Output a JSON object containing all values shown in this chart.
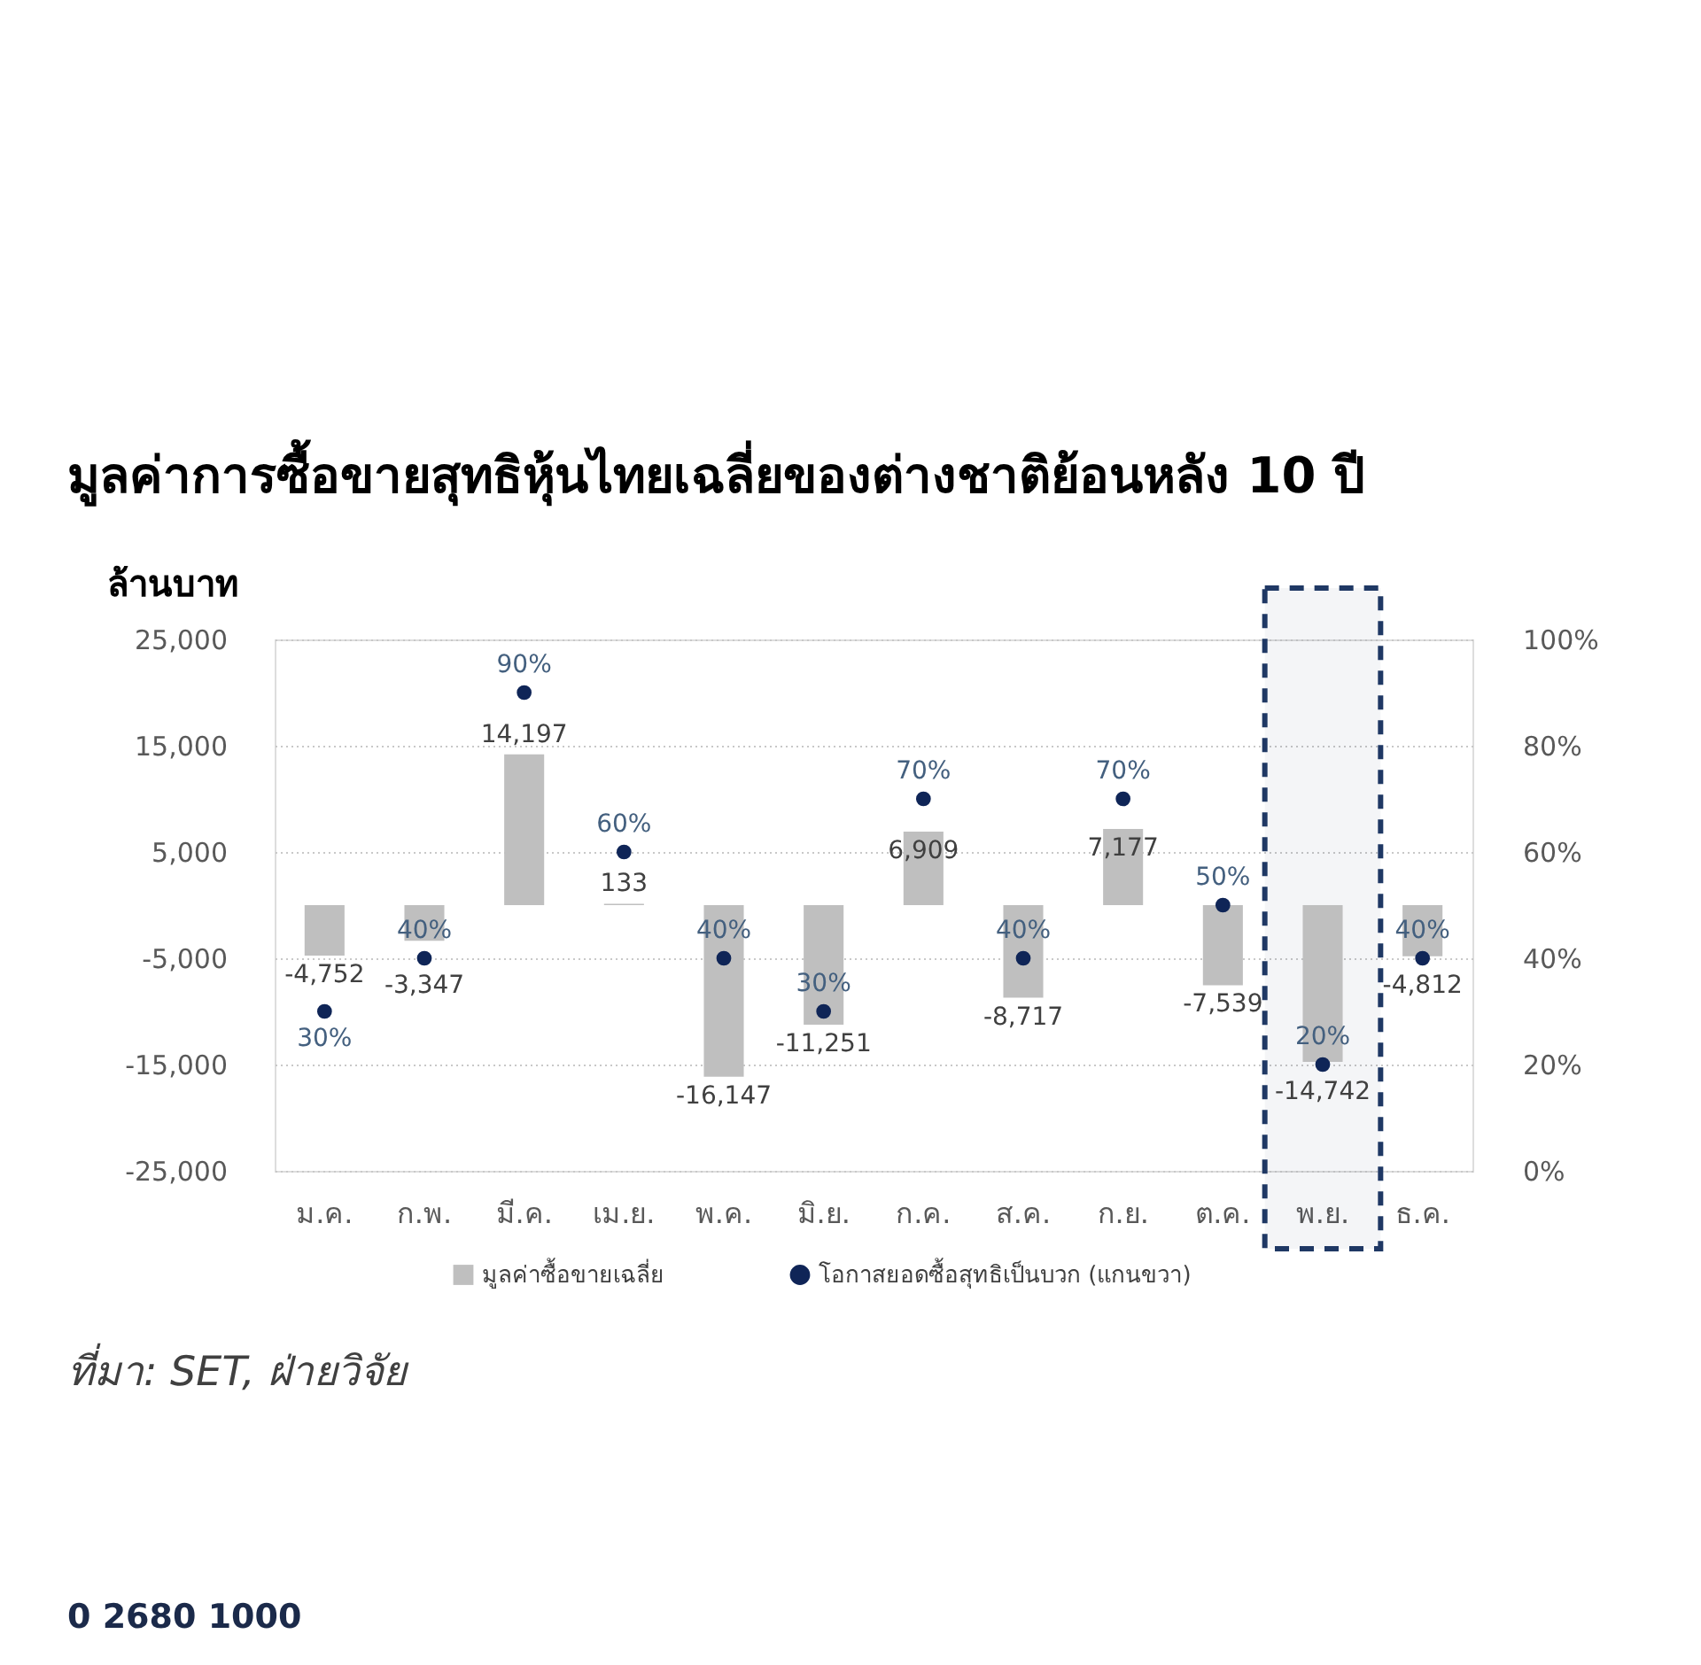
{
  "chart_data": {
    "type": "bar",
    "title": "มูลค่าการซื้อขายสุทธิหุ้นไทยเฉลี่ยของต่างชาติย้อนหลัง 10 ปี",
    "ylabel": "ล้านบาท",
    "categories": [
      "ม.ค.",
      "ก.พ.",
      "มี.ค.",
      "เม.ย.",
      "พ.ค.",
      "มิ.ย.",
      "ก.ค.",
      "ส.ค.",
      "ก.ย.",
      "ต.ค.",
      "พ.ย.",
      "ธ.ค."
    ],
    "series": [
      {
        "name": "มูลค่าซื้อขายเฉลี่ย",
        "color": "#bfbfbf",
        "values": [
          -4752,
          -3347,
          14197,
          133,
          -16147,
          -11251,
          6909,
          -8717,
          7177,
          -7539,
          -14742,
          -4812
        ],
        "value_labels": [
          "-4,752",
          "-3,347",
          "14,197",
          "133",
          "-16,147",
          "-11,251",
          "6,909",
          "-8,717",
          "7,177",
          "-7,539",
          "-14,742",
          "-4,812"
        ]
      },
      {
        "name": "โอกาสยอดซื้อสุทธิเป็นบวก (แกนขวา)",
        "type": "scatter",
        "axis": "y2",
        "color": "#0f2557",
        "values": [
          30,
          40,
          90,
          60,
          40,
          30,
          70,
          40,
          70,
          50,
          20,
          40
        ],
        "value_labels": [
          "30%",
          "40%",
          "90%",
          "60%",
          "40%",
          "30%",
          "70%",
          "40%",
          "70%",
          "50%",
          "20%",
          "40%"
        ]
      }
    ],
    "ylim": [
      -25000,
      25000
    ],
    "yticks": [
      {
        "value": -25000,
        "label": "-25,000"
      },
      {
        "value": -15000,
        "label": "-15,000"
      },
      {
        "value": -5000,
        "label": "-5,000"
      },
      {
        "value": 5000,
        "label": "5,000"
      },
      {
        "value": 15000,
        "label": "15,000"
      },
      {
        "value": 25000,
        "label": "25,000"
      }
    ],
    "y2lim": [
      0,
      100
    ],
    "y2ticks": [
      {
        "value": 0,
        "label": "0%"
      },
      {
        "value": 20,
        "label": "20%"
      },
      {
        "value": 40,
        "label": "40%"
      },
      {
        "value": 60,
        "label": "60%"
      },
      {
        "value": 80,
        "label": "80%"
      },
      {
        "value": 100,
        "label": "100%"
      }
    ],
    "bands": [
      {
        "axis": "x",
        "from": "พ.ย.",
        "to": "พ.ย.",
        "color": "#1f3864"
      }
    ],
    "annotations": [
      "ที่มา: SET, ฝ่ายวิจัย",
      "0 2680 1000"
    ],
    "grid": "y",
    "legend": "bottom",
    "marker": "circle"
  }
}
